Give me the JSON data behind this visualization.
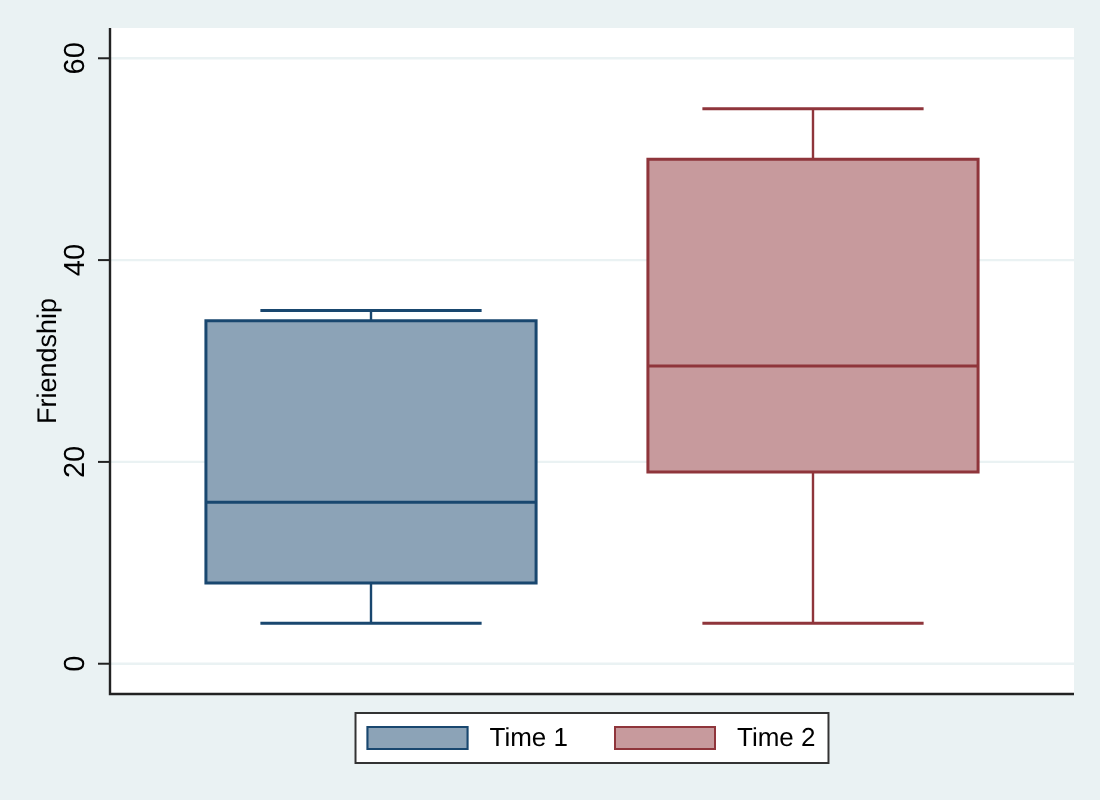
{
  "chart_data": {
    "type": "box",
    "ylabel": "Friendship",
    "categories": [
      null
    ],
    "series": [
      {
        "name": "Time 1",
        "color": "#8ca3b7",
        "boxes": [
          {
            "low": 4,
            "q1": 8,
            "median": 16,
            "q3": 34,
            "high": 35
          }
        ]
      },
      {
        "name": "Time 2",
        "color": "#c79a9d",
        "boxes": [
          {
            "low": 4,
            "q1": 19,
            "median": 29.5,
            "q3": 50,
            "high": 55
          }
        ]
      }
    ],
    "ylim": [
      -3,
      63
    ],
    "yticks": [
      0,
      20,
      40,
      60
    ],
    "grid": "y",
    "legend": "bottom"
  }
}
